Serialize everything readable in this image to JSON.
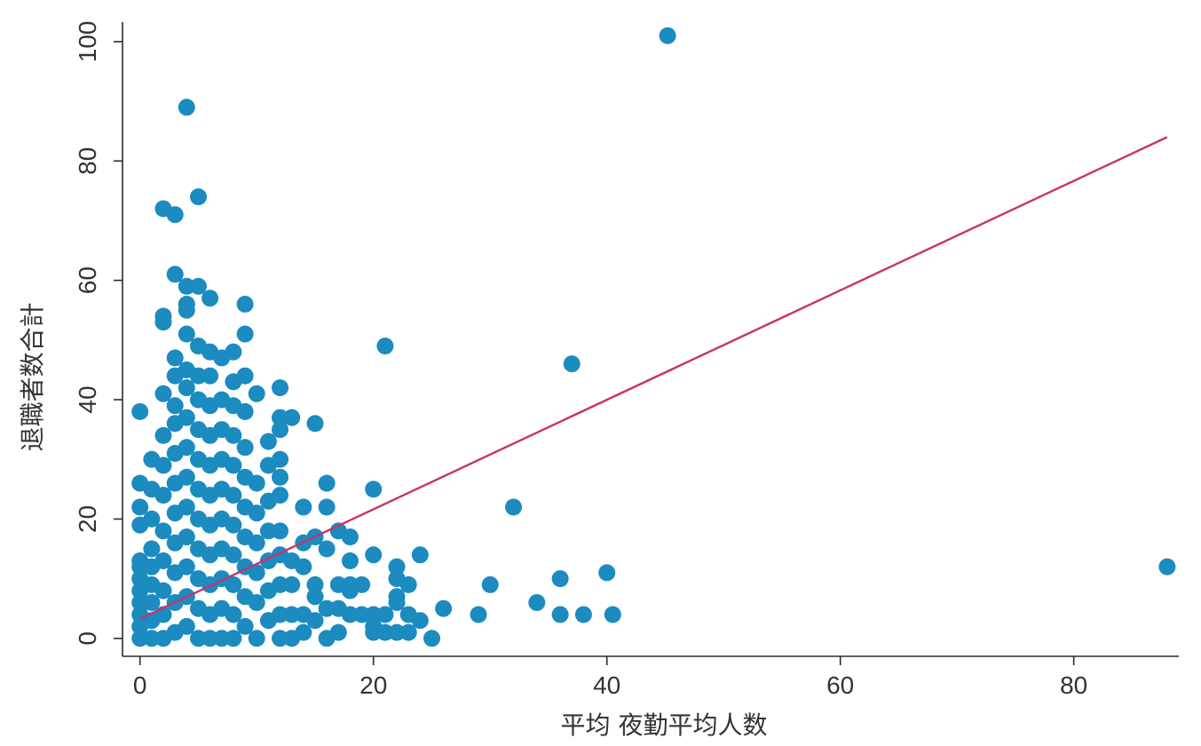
{
  "chart_data": {
    "type": "scatter",
    "title": "",
    "xlabel": "平均 夜勤平均人数",
    "ylabel": "退職者数合計",
    "xlim": [
      -1.5,
      89
    ],
    "ylim": [
      -3,
      104
    ],
    "x_ticks": [
      0,
      20,
      40,
      60,
      80
    ],
    "y_ticks": [
      0,
      20,
      40,
      60,
      80,
      100
    ],
    "grid": false,
    "legend": "none",
    "colors": {
      "points": "#1b8bc0",
      "fit_line": "#c8336a",
      "axis": "#2b2b2b"
    },
    "series": [
      {
        "points": [
          [
            0,
            38
          ],
          [
            0,
            26
          ],
          [
            0,
            22
          ],
          [
            0,
            19
          ],
          [
            0,
            13
          ],
          [
            0,
            12
          ],
          [
            0,
            10
          ],
          [
            0,
            8
          ],
          [
            0,
            6
          ],
          [
            0,
            4
          ],
          [
            0,
            2
          ],
          [
            0,
            0
          ],
          [
            1,
            30
          ],
          [
            1,
            25
          ],
          [
            1,
            20
          ],
          [
            1,
            15
          ],
          [
            1,
            12
          ],
          [
            1,
            9
          ],
          [
            1,
            6
          ],
          [
            1,
            3
          ],
          [
            1,
            0
          ],
          [
            2,
            72
          ],
          [
            2,
            54
          ],
          [
            2,
            53
          ],
          [
            2,
            41
          ],
          [
            2,
            34
          ],
          [
            2,
            29
          ],
          [
            2,
            24
          ],
          [
            2,
            18
          ],
          [
            2,
            13
          ],
          [
            2,
            8
          ],
          [
            2,
            4
          ],
          [
            2,
            0
          ],
          [
            3,
            71
          ],
          [
            3,
            61
          ],
          [
            3,
            47
          ],
          [
            3,
            44
          ],
          [
            3,
            39
          ],
          [
            3,
            36
          ],
          [
            3,
            31
          ],
          [
            3,
            26
          ],
          [
            3,
            21
          ],
          [
            3,
            16
          ],
          [
            3,
            11
          ],
          [
            3,
            6
          ],
          [
            3,
            1
          ],
          [
            4,
            89
          ],
          [
            4,
            59
          ],
          [
            4,
            56
          ],
          [
            4,
            55
          ],
          [
            4,
            51
          ],
          [
            4,
            45
          ],
          [
            4,
            42
          ],
          [
            4,
            37
          ],
          [
            4,
            32
          ],
          [
            4,
            27
          ],
          [
            4,
            22
          ],
          [
            4,
            17
          ],
          [
            4,
            12
          ],
          [
            4,
            7
          ],
          [
            4,
            2
          ],
          [
            5,
            74
          ],
          [
            5,
            59
          ],
          [
            5,
            49
          ],
          [
            5,
            44
          ],
          [
            5,
            40
          ],
          [
            5,
            35
          ],
          [
            5,
            30
          ],
          [
            5,
            25
          ],
          [
            5,
            20
          ],
          [
            5,
            15
          ],
          [
            5,
            10
          ],
          [
            5,
            5
          ],
          [
            5,
            0
          ],
          [
            6,
            57
          ],
          [
            6,
            48
          ],
          [
            6,
            44
          ],
          [
            6,
            39
          ],
          [
            6,
            34
          ],
          [
            6,
            29
          ],
          [
            6,
            24
          ],
          [
            6,
            19
          ],
          [
            6,
            14
          ],
          [
            6,
            9
          ],
          [
            6,
            4
          ],
          [
            6,
            0
          ],
          [
            7,
            47
          ],
          [
            7,
            40
          ],
          [
            7,
            35
          ],
          [
            7,
            30
          ],
          [
            7,
            25
          ],
          [
            7,
            20
          ],
          [
            7,
            15
          ],
          [
            7,
            10
          ],
          [
            7,
            5
          ],
          [
            7,
            0
          ],
          [
            8,
            48
          ],
          [
            8,
            43
          ],
          [
            8,
            39
          ],
          [
            8,
            34
          ],
          [
            8,
            29
          ],
          [
            8,
            24
          ],
          [
            8,
            19
          ],
          [
            8,
            14
          ],
          [
            8,
            9
          ],
          [
            8,
            4
          ],
          [
            8,
            0
          ],
          [
            9,
            56
          ],
          [
            9,
            51
          ],
          [
            9,
            44
          ],
          [
            9,
            38
          ],
          [
            9,
            32
          ],
          [
            9,
            27
          ],
          [
            9,
            22
          ],
          [
            9,
            17
          ],
          [
            9,
            12
          ],
          [
            9,
            7
          ],
          [
            9,
            2
          ],
          [
            10,
            41
          ],
          [
            10,
            26
          ],
          [
            10,
            21
          ],
          [
            10,
            16
          ],
          [
            10,
            11
          ],
          [
            10,
            6
          ],
          [
            10,
            0
          ],
          [
            11,
            33
          ],
          [
            11,
            29
          ],
          [
            11,
            23
          ],
          [
            11,
            18
          ],
          [
            11,
            13
          ],
          [
            11,
            8
          ],
          [
            11,
            3
          ],
          [
            12,
            42
          ],
          [
            12,
            37
          ],
          [
            12,
            35
          ],
          [
            12,
            30
          ],
          [
            12,
            27
          ],
          [
            12,
            24
          ],
          [
            12,
            18
          ],
          [
            12,
            14
          ],
          [
            12,
            9
          ],
          [
            12,
            4
          ],
          [
            12,
            0
          ],
          [
            13,
            37
          ],
          [
            13,
            13
          ],
          [
            13,
            9
          ],
          [
            13,
            4
          ],
          [
            13,
            0
          ],
          [
            14,
            22
          ],
          [
            14,
            16
          ],
          [
            14,
            12
          ],
          [
            14,
            4
          ],
          [
            14,
            1
          ],
          [
            15,
            36
          ],
          [
            15,
            17
          ],
          [
            15,
            9
          ],
          [
            15,
            7
          ],
          [
            15,
            3
          ],
          [
            16,
            26
          ],
          [
            16,
            22
          ],
          [
            16,
            15
          ],
          [
            16,
            5
          ],
          [
            16,
            0
          ],
          [
            17,
            18
          ],
          [
            17,
            9
          ],
          [
            17,
            5
          ],
          [
            17,
            1
          ],
          [
            18,
            17
          ],
          [
            18,
            13
          ],
          [
            18,
            9
          ],
          [
            18,
            8
          ],
          [
            18,
            4
          ],
          [
            19,
            9
          ],
          [
            19,
            4
          ],
          [
            20,
            25
          ],
          [
            20,
            14
          ],
          [
            20,
            4
          ],
          [
            20,
            2
          ],
          [
            20,
            1
          ],
          [
            21,
            49
          ],
          [
            21,
            4
          ],
          [
            21,
            1
          ],
          [
            22,
            12
          ],
          [
            22,
            10
          ],
          [
            22,
            7
          ],
          [
            22,
            6
          ],
          [
            22,
            1
          ],
          [
            23,
            4
          ],
          [
            23,
            9
          ],
          [
            23,
            1
          ],
          [
            24,
            14
          ],
          [
            24,
            3
          ],
          [
            25,
            0
          ],
          [
            26,
            5
          ],
          [
            29,
            4
          ],
          [
            30,
            9
          ],
          [
            32,
            22
          ],
          [
            34,
            6
          ],
          [
            36,
            10
          ],
          [
            36,
            4
          ],
          [
            37,
            46
          ],
          [
            38,
            4
          ],
          [
            40,
            11
          ],
          [
            40.5,
            4
          ],
          [
            45.2,
            101
          ],
          [
            88,
            12
          ]
        ]
      }
    ],
    "fit_line": {
      "x": [
        0,
        88
      ],
      "y": [
        3.3,
        84
      ]
    }
  }
}
